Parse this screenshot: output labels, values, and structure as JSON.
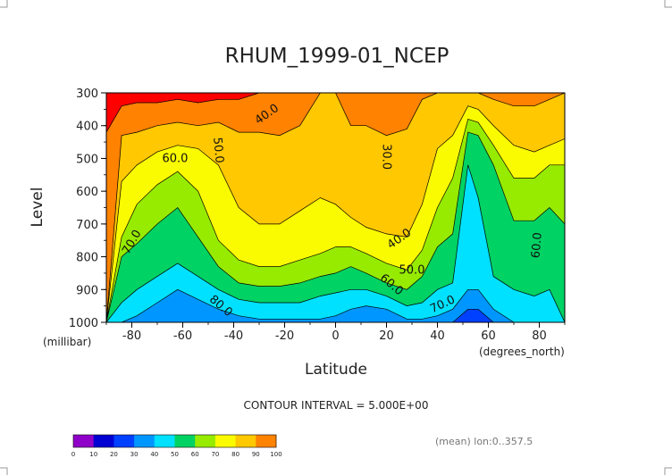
{
  "chart_data": {
    "type": "heatmap",
    "title": "RHUM_1999-01_NCEP",
    "xlabel": "Latitude",
    "ylabel": "Level",
    "x_unit": "(degrees_north)",
    "y_unit": "(millibar)",
    "x_ticks": [
      -80,
      -60,
      -40,
      -20,
      0,
      20,
      40,
      60,
      80
    ],
    "y_ticks": [
      300,
      400,
      500,
      600,
      700,
      800,
      900,
      1000
    ],
    "xlim": [
      -90,
      90
    ],
    "ylim": [
      1000,
      300
    ],
    "contour_interval_text": "CONTOUR INTERVAL = 5.000E+00",
    "footnote": "(mean) lon:0..357.5",
    "colorbar": {
      "ticks": [
        0,
        10,
        20,
        30,
        40,
        50,
        60,
        70,
        80,
        90,
        100
      ],
      "colors": [
        "#8f00c8",
        "#0000d2",
        "#0040ff",
        "#0096ff",
        "#00e1ff",
        "#00d264",
        "#96eb00",
        "#fafa00",
        "#ffc800",
        "#ff8200",
        "#ff0000"
      ]
    },
    "contour_labels": [
      {
        "text": "40.0",
        "lat": -27,
        "lev": 365,
        "angle": -35
      },
      {
        "text": "50.0",
        "lat": -46,
        "lev": 475,
        "angle": 85
      },
      {
        "text": "60.0",
        "lat": -63,
        "lev": 500,
        "angle": 0
      },
      {
        "text": "70.0",
        "lat": -80,
        "lev": 755,
        "angle": -60
      },
      {
        "text": "80.0",
        "lat": -45,
        "lev": 950,
        "angle": 40
      },
      {
        "text": "30.0",
        "lat": 20,
        "lev": 495,
        "angle": 90
      },
      {
        "text": "40.0",
        "lat": 25,
        "lev": 745,
        "angle": -35
      },
      {
        "text": "50.0",
        "lat": 30,
        "lev": 840,
        "angle": 0
      },
      {
        "text": "60.0",
        "lat": 22,
        "lev": 885,
        "angle": 40
      },
      {
        "text": "70.0",
        "lat": 42,
        "lev": 945,
        "angle": -25
      },
      {
        "text": "60.0",
        "lat": 79,
        "lev": 765,
        "angle": -85
      }
    ],
    "columns": [
      {
        "lat": -90,
        "bounds": [
          1000,
          1000,
          1000,
          1000,
          1000,
          1000,
          1000,
          1000,
          1000,
          420,
          300
        ]
      },
      {
        "lat": -84,
        "bounds": [
          1000,
          1000,
          1000,
          1000,
          940,
          800,
          740,
          570,
          430,
          340,
          300
        ]
      },
      {
        "lat": -78,
        "bounds": [
          1000,
          1000,
          1000,
          980,
          900,
          760,
          640,
          520,
          420,
          330,
          300
        ]
      },
      {
        "lat": -70,
        "bounds": [
          1000,
          1000,
          1000,
          940,
          860,
          700,
          580,
          480,
          400,
          330,
          300
        ]
      },
      {
        "lat": -62,
        "bounds": [
          1000,
          1000,
          1000,
          900,
          820,
          650,
          540,
          460,
          390,
          320,
          300
        ]
      },
      {
        "lat": -54,
        "bounds": [
          1000,
          1000,
          1000,
          930,
          860,
          740,
          600,
          470,
          400,
          330,
          300
        ]
      },
      {
        "lat": -46,
        "bounds": [
          1000,
          1000,
          1000,
          960,
          900,
          830,
          750,
          520,
          390,
          320,
          300
        ]
      },
      {
        "lat": -38,
        "bounds": [
          1000,
          1000,
          1000,
          980,
          930,
          880,
          810,
          650,
          420,
          320,
          300
        ]
      },
      {
        "lat": -30,
        "bounds": [
          1000,
          1000,
          1000,
          990,
          940,
          890,
          830,
          700,
          420,
          300,
          300
        ]
      },
      {
        "lat": -22,
        "bounds": [
          1000,
          1000,
          1000,
          990,
          940,
          890,
          830,
          700,
          430,
          300,
          300
        ]
      },
      {
        "lat": -14,
        "bounds": [
          1000,
          1000,
          1000,
          990,
          940,
          880,
          810,
          660,
          400,
          300,
          300
        ]
      },
      {
        "lat": -6,
        "bounds": [
          1000,
          1000,
          1000,
          990,
          920,
          860,
          790,
          620,
          300,
          300,
          300
        ]
      },
      {
        "lat": 0,
        "bounds": [
          1000,
          1000,
          1000,
          980,
          910,
          850,
          770,
          640,
          300,
          300,
          300
        ]
      },
      {
        "lat": 6,
        "bounds": [
          1000,
          1000,
          1000,
          960,
          900,
          830,
          770,
          680,
          400,
          300,
          300
        ]
      },
      {
        "lat": 12,
        "bounds": [
          1000,
          1000,
          1000,
          950,
          900,
          850,
          790,
          710,
          400,
          300,
          300
        ]
      },
      {
        "lat": 20,
        "bounds": [
          1000,
          1000,
          1000,
          960,
          920,
          880,
          820,
          730,
          430,
          300,
          300
        ]
      },
      {
        "lat": 28,
        "bounds": [
          1000,
          1000,
          1000,
          990,
          950,
          900,
          840,
          740,
          410,
          300,
          300
        ]
      },
      {
        "lat": 34,
        "bounds": [
          1000,
          1000,
          1000,
          990,
          940,
          860,
          780,
          640,
          320,
          300,
          300
        ]
      },
      {
        "lat": 40,
        "bounds": [
          1000,
          1000,
          1000,
          980,
          900,
          770,
          650,
          470,
          300,
          300,
          300
        ]
      },
      {
        "lat": 46,
        "bounds": [
          1000,
          1000,
          1000,
          960,
          880,
          730,
          560,
          430,
          300,
          300,
          300
        ]
      },
      {
        "lat": 52,
        "bounds": [
          1000,
          1000,
          960,
          900,
          520,
          420,
          380,
          340,
          300,
          300,
          300
        ]
      },
      {
        "lat": 56,
        "bounds": [
          1000,
          1000,
          960,
          900,
          620,
          430,
          390,
          350,
          300,
          300,
          300
        ]
      },
      {
        "lat": 62,
        "bounds": [
          1000,
          1000,
          1000,
          960,
          860,
          520,
          460,
          400,
          320,
          300,
          300
        ]
      },
      {
        "lat": 70,
        "bounds": [
          1000,
          1000,
          1000,
          1000,
          900,
          690,
          560,
          460,
          340,
          300,
          300
        ]
      },
      {
        "lat": 78,
        "bounds": [
          1000,
          1000,
          1000,
          1000,
          920,
          690,
          560,
          480,
          340,
          300,
          300
        ]
      },
      {
        "lat": 84,
        "bounds": [
          1000,
          1000,
          1000,
          1000,
          900,
          650,
          520,
          460,
          320,
          300,
          300
        ]
      },
      {
        "lat": 90,
        "bounds": [
          1000,
          1000,
          1000,
          1000,
          1000,
          700,
          520,
          440,
          300,
          300,
          300
        ]
      }
    ]
  }
}
